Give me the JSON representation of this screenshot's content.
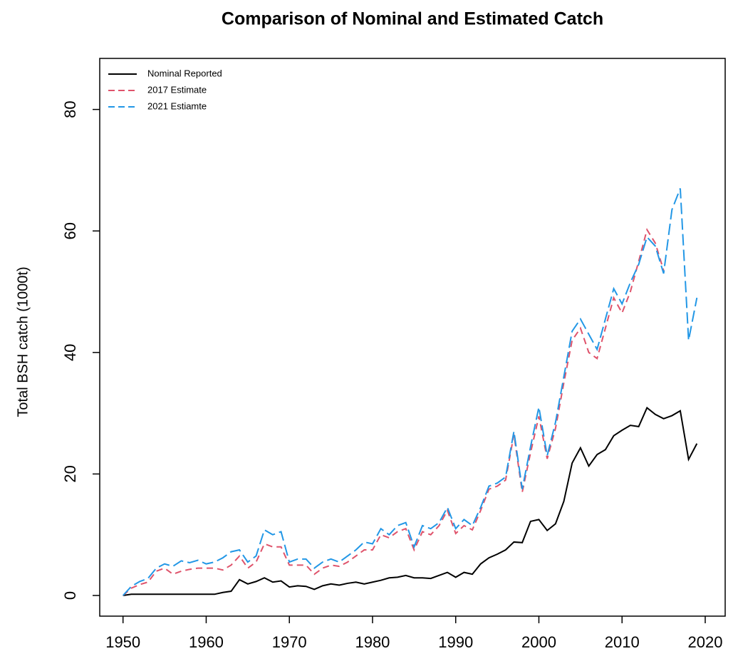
{
  "chart_data": {
    "type": "line",
    "title": "Comparison of Nominal and Estimated Catch",
    "y_label": "Total BSH catch (1000t)",
    "x": [
      1950,
      1951,
      1952,
      1953,
      1954,
      1955,
      1956,
      1957,
      1958,
      1959,
      1960,
      1961,
      1962,
      1963,
      1964,
      1965,
      1966,
      1967,
      1968,
      1969,
      1970,
      1971,
      1972,
      1973,
      1974,
      1975,
      1976,
      1977,
      1978,
      1979,
      1980,
      1981,
      1982,
      1983,
      1984,
      1985,
      1986,
      1987,
      1988,
      1989,
      1990,
      1991,
      1992,
      1993,
      1994,
      1995,
      1996,
      1997,
      1998,
      1999,
      2000,
      2001,
      2002,
      2003,
      2004,
      2005,
      2006,
      2007,
      2008,
      2009,
      2010,
      2011,
      2012,
      2013,
      2014,
      2015,
      2016,
      2017,
      2018,
      2019
    ],
    "series": [
      {
        "name": "Nominal Reported",
        "color": "#000000",
        "dash": "none",
        "values": [
          0,
          0.2,
          0.2,
          0.2,
          0.2,
          0.2,
          0.2,
          0.2,
          0.2,
          0.2,
          0.2,
          0.2,
          0.5,
          0.7,
          2.6,
          1.9,
          2.3,
          2.9,
          2.2,
          2.4,
          1.4,
          1.6,
          1.5,
          1.0,
          1.6,
          1.9,
          1.7,
          2.0,
          2.2,
          1.9,
          2.2,
          2.5,
          2.9,
          3.0,
          3.3,
          2.9,
          2.9,
          2.8,
          3.3,
          3.8,
          3.0,
          3.8,
          3.5,
          5.2,
          6.2,
          6.8,
          7.5,
          8.8,
          8.7,
          12.2,
          12.5,
          10.7,
          11.8,
          15.5,
          21.8,
          24.3,
          21.3,
          23.2,
          24.0,
          26.3,
          27.2,
          28.0,
          27.8,
          30.9,
          29.8,
          29.1,
          29.6,
          30.4,
          22.4,
          25.0
        ]
      },
      {
        "name": "2017 Estimate",
        "color": "#DF536B",
        "dash": "9 6",
        "values": [
          0,
          1.2,
          1.8,
          2.2,
          4.0,
          4.5,
          3.5,
          4.0,
          4.3,
          4.5,
          4.5,
          4.5,
          4.2,
          5.0,
          6.5,
          4.5,
          5.5,
          8.5,
          8.0,
          8.0,
          5.0,
          5.0,
          5.0,
          3.5,
          4.5,
          5.0,
          4.8,
          5.5,
          6.5,
          7.5,
          7.5,
          10.0,
          9.5,
          10.5,
          11.0,
          7.5,
          10.5,
          10.0,
          11.5,
          14.0,
          10.2,
          11.5,
          10.8,
          14.0,
          17.5,
          18.0,
          19.0,
          26.5,
          17.0,
          23.5,
          29.5,
          22.5,
          27.5,
          35.0,
          42.0,
          44.0,
          40.0,
          39.0,
          44.0,
          49.0,
          46.5,
          50.0,
          55.0,
          60.2,
          58.0,
          53.5,
          null,
          null,
          null,
          null
        ]
      },
      {
        "name": "2021 Estiamte",
        "color": "#2297E6",
        "dash": "16 6",
        "values": [
          0,
          1.5,
          2.3,
          2.8,
          4.5,
          5.2,
          4.8,
          5.7,
          5.4,
          5.8,
          5.2,
          5.5,
          6.2,
          7.2,
          7.5,
          5.5,
          6.5,
          10.8,
          10.0,
          10.5,
          5.5,
          6.0,
          6.0,
          4.5,
          5.5,
          6.0,
          5.5,
          6.5,
          7.5,
          8.8,
          8.5,
          11.0,
          10.0,
          11.5,
          12.0,
          8.0,
          11.5,
          11.0,
          12.0,
          14.5,
          11.0,
          12.5,
          11.5,
          14.5,
          18.0,
          18.5,
          19.5,
          27.0,
          17.5,
          24.5,
          31.0,
          23.0,
          28.5,
          36.0,
          43.5,
          45.5,
          43.0,
          40.5,
          45.5,
          50.5,
          48.0,
          51.5,
          54.5,
          59.0,
          57.5,
          53.0,
          63.5,
          67.0,
          42.0,
          49.0
        ]
      }
    ],
    "xlim": [
      1947.2,
      2022.4
    ],
    "ylim": [
      -3.4,
      88.4
    ],
    "xticks": [
      1950,
      1960,
      1970,
      1980,
      1990,
      2000,
      2010,
      2020
    ],
    "yticks": [
      0,
      20,
      40,
      60,
      80
    ],
    "legend": "top-left"
  }
}
